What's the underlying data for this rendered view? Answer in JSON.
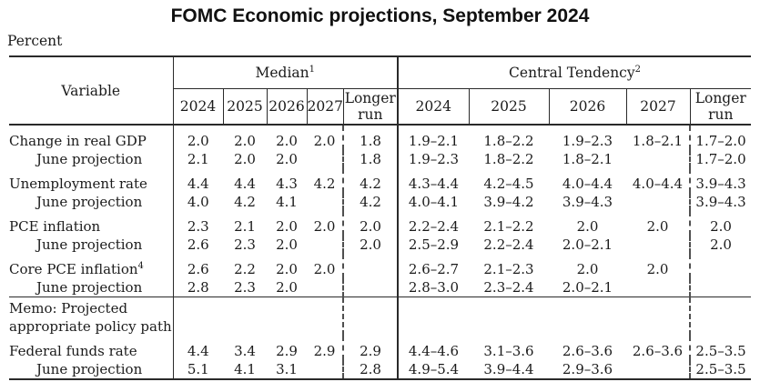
{
  "title": "FOMC Economic projections, September 2024",
  "unit_label": "Percent",
  "table": {
    "variable_header": "Variable",
    "group_headers": [
      {
        "label": "Median",
        "sup": "1"
      },
      {
        "label": "Central Tendency",
        "sup": "2"
      }
    ],
    "year_headers": [
      "2024",
      "2025",
      "2026",
      "2027",
      "Longer run"
    ],
    "year_keys": [
      "2024",
      "2025",
      "2026",
      "2027",
      "longer-run"
    ],
    "rows": [
      {
        "label": "Change in real GDP",
        "group_start": true,
        "median": [
          "2.0",
          "2.0",
          "2.0",
          "2.0",
          "1.8"
        ],
        "central": [
          "1.9–2.1",
          "1.8–2.2",
          "1.9–2.3",
          "1.8–2.1",
          "1.7–2.0"
        ]
      },
      {
        "label": "June projection",
        "indent": true,
        "median": [
          "2.1",
          "2.0",
          "2.0",
          "",
          "1.8"
        ],
        "central": [
          "1.9–2.3",
          "1.8–2.2",
          "1.8–2.1",
          "",
          "1.7–2.0"
        ]
      },
      {
        "label": "Unemployment rate",
        "group_start": true,
        "median": [
          "4.4",
          "4.4",
          "4.3",
          "4.2",
          "4.2"
        ],
        "central": [
          "4.3–4.4",
          "4.2–4.5",
          "4.0–4.4",
          "4.0–4.4",
          "3.9–4.3"
        ]
      },
      {
        "label": "June projection",
        "indent": true,
        "median": [
          "4.0",
          "4.2",
          "4.1",
          "",
          "4.2"
        ],
        "central": [
          "4.0–4.1",
          "3.9–4.2",
          "3.9–4.3",
          "",
          "3.9–4.3"
        ]
      },
      {
        "label": "PCE inflation",
        "group_start": true,
        "median": [
          "2.3",
          "2.1",
          "2.0",
          "2.0",
          "2.0"
        ],
        "central": [
          "2.2–2.4",
          "2.1–2.2",
          "2.0",
          "2.0",
          "2.0"
        ]
      },
      {
        "label": "June projection",
        "indent": true,
        "median": [
          "2.6",
          "2.3",
          "2.0",
          "",
          "2.0"
        ],
        "central": [
          "2.5–2.9",
          "2.2–2.4",
          "2.0–2.1",
          "",
          "2.0"
        ]
      },
      {
        "label": "Core PCE inflation",
        "sup": "4",
        "group_start": true,
        "median": [
          "2.6",
          "2.2",
          "2.0",
          "2.0",
          ""
        ],
        "central": [
          "2.6–2.7",
          "2.1–2.3",
          "2.0",
          "2.0",
          ""
        ]
      },
      {
        "label": "June projection",
        "indent": true,
        "median": [
          "2.8",
          "2.3",
          "2.0",
          "",
          ""
        ],
        "central": [
          "2.8–3.0",
          "2.3–2.4",
          "2.0–2.1",
          "",
          ""
        ]
      },
      {
        "memo": true,
        "rule_above": true,
        "label_lines": [
          "Memo: Projected",
          "appropriate policy path"
        ],
        "median": [
          "",
          "",
          "",
          "",
          ""
        ],
        "central": [
          "",
          "",
          "",
          "",
          ""
        ]
      },
      {
        "label": "Federal funds rate",
        "group_start": true,
        "median": [
          "4.4",
          "3.4",
          "2.9",
          "2.9",
          "2.9"
        ],
        "central": [
          "4.4–4.6",
          "3.1–3.6",
          "2.6–3.6",
          "2.6–3.6",
          "2.5–3.5"
        ]
      },
      {
        "label": "June projection",
        "indent": true,
        "median": [
          "5.1",
          "4.1",
          "3.1",
          "",
          "2.8"
        ],
        "central": [
          "4.9–5.4",
          "3.9–4.4",
          "2.9–3.6",
          "",
          "2.5–3.5"
        ]
      }
    ]
  }
}
